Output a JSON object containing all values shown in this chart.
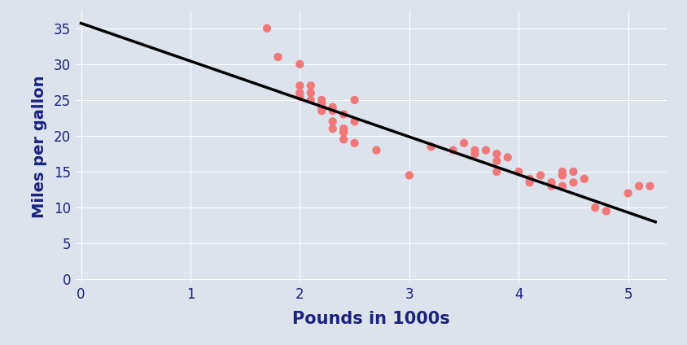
{
  "scatter_x": [
    1.7,
    1.8,
    2.0,
    2.0,
    2.0,
    2.0,
    2.1,
    2.1,
    2.1,
    2.2,
    2.2,
    2.2,
    2.2,
    2.3,
    2.3,
    2.3,
    2.3,
    2.4,
    2.4,
    2.4,
    2.4,
    2.5,
    2.5,
    2.5,
    2.7,
    3.0,
    3.2,
    3.4,
    3.5,
    3.6,
    3.6,
    3.7,
    3.8,
    3.8,
    3.8,
    3.9,
    4.0,
    4.1,
    4.1,
    4.2,
    4.3,
    4.3,
    4.4,
    4.4,
    4.4,
    4.5,
    4.5,
    4.6,
    4.7,
    4.8,
    5.0,
    5.1,
    5.2
  ],
  "scatter_y": [
    35.0,
    31.0,
    30.0,
    27.0,
    26.0,
    25.5,
    27.0,
    26.0,
    25.0,
    25.0,
    24.5,
    24.0,
    23.5,
    24.0,
    23.5,
    22.0,
    21.0,
    23.0,
    21.0,
    20.5,
    19.5,
    25.0,
    22.0,
    19.0,
    18.0,
    14.5,
    18.5,
    18.0,
    19.0,
    18.0,
    17.5,
    18.0,
    17.5,
    16.5,
    15.0,
    17.0,
    15.0,
    14.0,
    13.5,
    14.5,
    13.5,
    13.0,
    15.0,
    14.5,
    13.0,
    15.0,
    13.5,
    14.0,
    10.0,
    9.5,
    12.0,
    13.0,
    13.0
  ],
  "line_x": [
    0,
    5.25
  ],
  "line_y": [
    35.7,
    8.0
  ],
  "scatter_color": "#f07878",
  "line_color": "#000000",
  "background_color": "#dce3ed",
  "xlabel": "Pounds in 1000s",
  "ylabel": "Miles per gallon",
  "xlim": [
    -0.05,
    5.35
  ],
  "ylim": [
    -0.5,
    37.5
  ],
  "xticks": [
    0,
    1,
    2,
    3,
    4,
    5
  ],
  "yticks": [
    0,
    5,
    10,
    15,
    20,
    25,
    30,
    35
  ],
  "xlabel_fontsize": 15,
  "ylabel_fontsize": 14,
  "tick_fontsize": 12,
  "scatter_size": 55,
  "line_width": 2.5,
  "label_color": "#1a237e",
  "grid_color": "#ffffff",
  "fig_width": 8.44,
  "fig_height": 4.24,
  "dpi": 100
}
